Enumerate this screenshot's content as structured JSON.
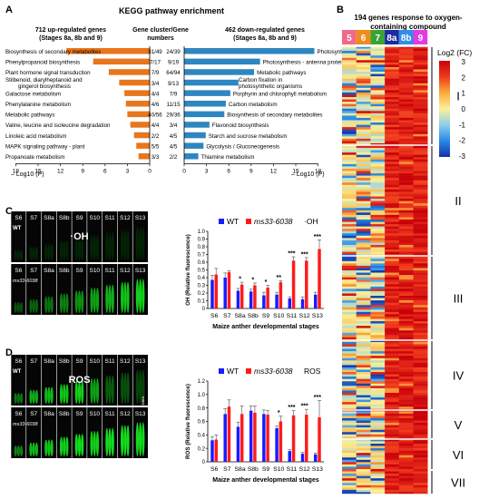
{
  "panelA": {
    "letter": "A",
    "title": "KEGG pathway enrichment",
    "up_header": [
      "712 up-regulated genes",
      "(Stages 8a, 8b and 9)"
    ],
    "mid_header": [
      "Gene cluster/Gene",
      "numbers"
    ],
    "down_header": [
      "462 down-regulated genes",
      "(Stages 8a, 8b and 9)"
    ],
    "axis_label": "– Log10 (P)",
    "up_ticks": [
      "18",
      "15",
      "12",
      "9",
      "6",
      "3",
      "0"
    ],
    "down_ticks": [
      "0",
      "3",
      "6",
      "9",
      "12",
      "15",
      "18"
    ],
    "bar_color": "#e8761c",
    "down_bar_color": "#2e86c1"
  },
  "panelB": {
    "letter": "B",
    "title": [
      "194 genes response to oxygen-",
      "containing compound"
    ],
    "stages": [
      {
        "label": "5",
        "color": "#f06a8a"
      },
      {
        "label": "6",
        "color": "#f08c1c"
      },
      {
        "label": "7",
        "color": "#3aa335"
      },
      {
        "label": "8a",
        "color": "#1c2a9e"
      },
      {
        "label": "8b",
        "color": "#2f8ee6"
      },
      {
        "label": "9",
        "color": "#e23be0"
      }
    ],
    "legend_title": "Log2 (FC)",
    "legend_ticks": [
      "3",
      "2",
      "1",
      "0",
      "-1",
      "-2",
      "-3"
    ],
    "clusters": [
      "I",
      "II",
      "III",
      "IV",
      "V",
      "VI",
      "VII"
    ]
  },
  "panelC": {
    "letter": "C",
    "stages": [
      "S6",
      "S7",
      "S8a",
      "S8b",
      "S9",
      "S10",
      "S11",
      "S12",
      "S13"
    ],
    "row_labels": [
      "WT",
      "ms33-6038"
    ],
    "overlay": "·OH",
    "legend_wt": "WT",
    "legend_mut": "ms33-6038",
    "legend_title": "·OH",
    "ylabel": "OH (Relative fluorescence)",
    "xlabel": "Maize anther developmental stages"
  },
  "panelD": {
    "letter": "D",
    "stages": [
      "S6",
      "S7",
      "S8a",
      "S8b",
      "S9",
      "S10",
      "S11",
      "S12",
      "S13"
    ],
    "row_labels": [
      "WT",
      "ms33-6038"
    ],
    "overlay": "ROS",
    "legend_wt": "WT",
    "legend_mut": "ms33-6038",
    "legend_title": "ROS",
    "ylabel": "ROS (Relative fluorescence)",
    "xlabel": "Maize anther developmental stages",
    "scale": "1mm"
  },
  "chart_data": [
    {
      "type": "bar",
      "title": "KEGG pathway enrichment",
      "orientation": "horizontal",
      "xlabel": "– Log10 (P)",
      "xlim": [
        0,
        18
      ],
      "series": [
        {
          "name": "712 up-regulated genes (Stages 8a, 8b and 9)",
          "categories": [
            "Biosynthesis of secondary metabolites",
            "Phenylpropanoid biosynthesis",
            "Plant hormone signal transduction",
            "Stilbenoid, diarylheptanoid and gingerol biosynthesis",
            "Galactose metabolism",
            "Phenylalanine metabolism",
            "Metabolic pathways",
            "Valine, leucine and isoleucine degradation",
            "Linoleic acid metabolism",
            "MAPK signaling pathway - plant",
            "Propanoate metabolism"
          ],
          "gene_numbers": [
            "31/49",
            "7/17",
            "7/9",
            "3/4",
            "4/4",
            "4/6",
            "40/56",
            "4/4",
            "2/2",
            "5/5",
            "3/3"
          ],
          "values": [
            11.2,
            7.6,
            5.5,
            4.1,
            3.4,
            3.2,
            3.0,
            2.6,
            2.1,
            1.8,
            1.5
          ]
        },
        {
          "name": "462 down-regulated genes (Stages 8a, 8b and 9)",
          "categories": [
            "Photosynthesis",
            "Photosynthesis - antenna proteins",
            "Metabolic pathways",
            "Carbon fixation in photosynthetic organisms",
            "Porphyrin and chlorophyll metabolism",
            "Carbon metabolism",
            "Biosynthesis of secondary metabolites",
            "Flavonoid biosynthesis",
            "Starch and sucrose metabolism",
            "Glycolysis / Gluconeogenesis",
            "Thiamine metabolism"
          ],
          "gene_numbers": [
            "24/39",
            "9/19",
            "64/94",
            "9/13",
            "7/9",
            "11/15",
            "29/36",
            "3/4",
            "4/5",
            "4/5",
            "2/2"
          ],
          "values": [
            17.5,
            10.2,
            9.4,
            7.3,
            6.2,
            5.6,
            5.4,
            3.4,
            2.9,
            2.6,
            1.9
          ]
        }
      ]
    },
    {
      "type": "bar",
      "title": "·OH",
      "ylabel": "OH (Relative fluorescence)",
      "xlabel": "Maize anther developmental stages",
      "categories": [
        "S6",
        "S7",
        "S8a",
        "S8b",
        "S9",
        "S10",
        "S11",
        "S12",
        "S13"
      ],
      "ylim": [
        0,
        1.0
      ],
      "yticks": [
        "0",
        "0.1",
        "0.2",
        "0.3",
        "0.4",
        "0.5",
        "0.6",
        "0.7",
        "0.8",
        "0.9",
        "1.0"
      ],
      "significance": [
        "",
        "",
        "*",
        "*",
        "*",
        "**",
        "***",
        "***",
        "***"
      ],
      "series": [
        {
          "name": "WT",
          "color": "#1a1aff",
          "values": [
            0.37,
            0.4,
            0.23,
            0.22,
            0.17,
            0.18,
            0.13,
            0.12,
            0.18
          ],
          "errors": [
            0.06,
            0.06,
            0.03,
            0.03,
            0.04,
            0.03,
            0.02,
            0.03,
            0.03
          ]
        },
        {
          "name": "ms33-6038",
          "color": "#ff1a1a",
          "values": [
            0.44,
            0.47,
            0.31,
            0.3,
            0.27,
            0.34,
            0.62,
            0.62,
            0.77
          ],
          "errors": [
            0.08,
            0.02,
            0.03,
            0.03,
            0.03,
            0.02,
            0.05,
            0.04,
            0.12
          ]
        }
      ]
    },
    {
      "type": "bar",
      "title": "ROS",
      "ylabel": "ROS (Relative fluorescence)",
      "xlabel": "Maize anther developmental stages",
      "categories": [
        "S6",
        "S7",
        "S8a",
        "S8b",
        "S9",
        "S10",
        "S11",
        "S12",
        "S13"
      ],
      "ylim": [
        0,
        1.2
      ],
      "yticks": [
        "0",
        "0.2",
        "0.4",
        "0.6",
        "0.8",
        "1.0",
        "1.2"
      ],
      "significance": [
        "",
        "",
        "",
        "",
        "",
        "*",
        "***",
        "***",
        "***"
      ],
      "series": [
        {
          "name": "WT",
          "color": "#1a1aff",
          "values": [
            0.32,
            0.71,
            0.52,
            0.76,
            0.71,
            0.5,
            0.16,
            0.12,
            0.11
          ],
          "errors": [
            0.05,
            0.08,
            0.07,
            0.07,
            0.06,
            0.03,
            0.02,
            0.02,
            0.02
          ]
        },
        {
          "name": "ms33-6038",
          "color": "#ff1a1a",
          "values": [
            0.33,
            0.82,
            0.71,
            0.73,
            0.7,
            0.6,
            0.69,
            0.7,
            0.66
          ],
          "errors": [
            0.07,
            0.1,
            0.12,
            0.1,
            0.06,
            0.08,
            0.07,
            0.08,
            0.25
          ]
        }
      ]
    }
  ]
}
